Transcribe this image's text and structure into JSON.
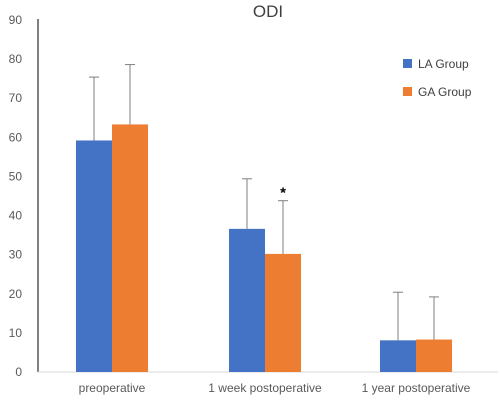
{
  "chart_data": {
    "type": "bar",
    "title": "ODI",
    "xlabel": "",
    "ylabel": "",
    "ylim": [
      0,
      90
    ],
    "yticks": [
      0,
      10,
      20,
      30,
      40,
      50,
      60,
      70,
      80,
      90
    ],
    "grid": false,
    "legend_position": "top-right",
    "categories": [
      "preoperative",
      "1 week postoperative",
      "1 year postoperative"
    ],
    "series": [
      {
        "name": "LA Group",
        "color": "#4472C4",
        "values": [
          59.2,
          36.6,
          8.1
        ],
        "error": [
          16.2,
          12.8,
          12.3
        ]
      },
      {
        "name": "GA Group",
        "color": "#ED7D31",
        "values": [
          63.3,
          30.2,
          8.3
        ],
        "error": [
          15.3,
          13.6,
          10.9
        ]
      }
    ],
    "annotations": [
      {
        "text": "*",
        "category": 1,
        "series": 1
      }
    ]
  }
}
